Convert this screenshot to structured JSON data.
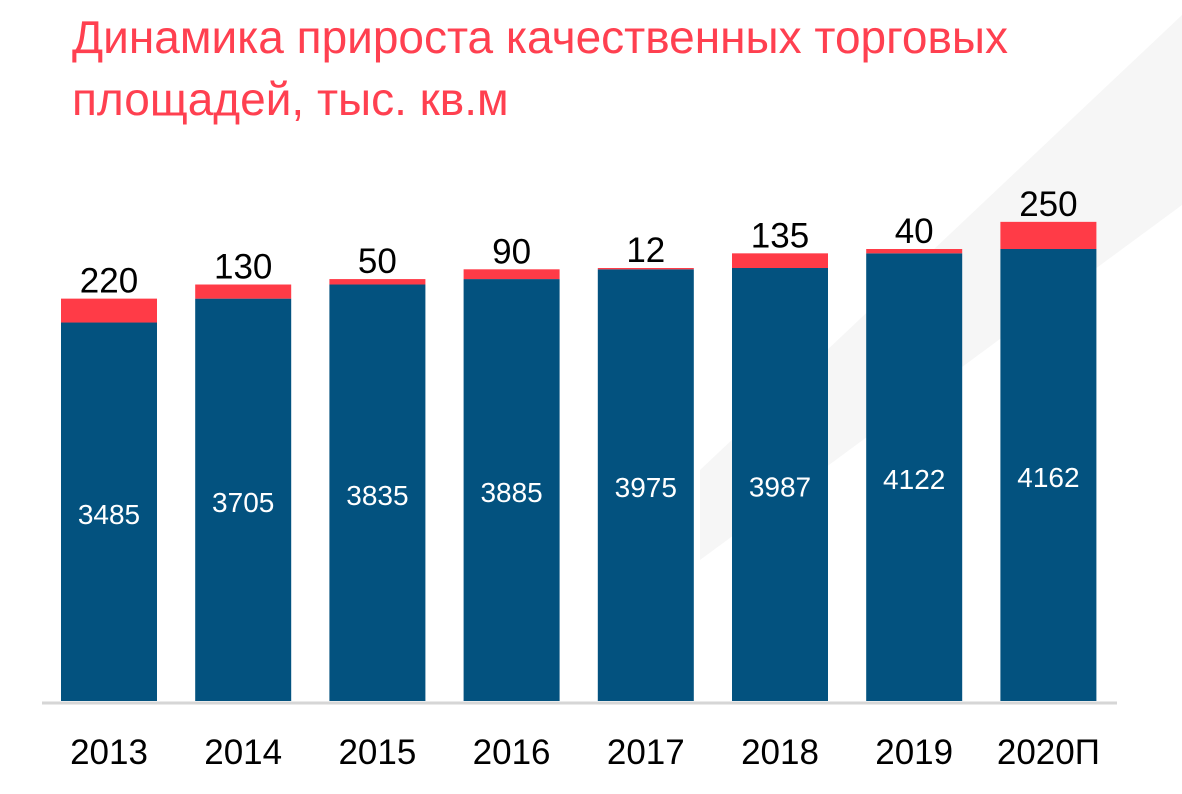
{
  "chart_data": {
    "type": "bar",
    "stacked": true,
    "title": "Динамика прироста качественных торговых площадей, тыс. кв.м",
    "categories": [
      "2013",
      "2014",
      "2015",
      "2016",
      "2017",
      "2018",
      "2019",
      "2020П"
    ],
    "series": [
      {
        "values": [
          3485,
          3705,
          3835,
          3885,
          3975,
          3987,
          4122,
          4162
        ],
        "color": "#03527f",
        "label_color": "#ffffff"
      },
      {
        "values": [
          220,
          130,
          50,
          90,
          12,
          135,
          40,
          250
        ],
        "color": "#ff3b47",
        "label_color": "#000000"
      }
    ],
    "ylim": [
      0,
      4600
    ],
    "grid": false,
    "y_axis_visible": false,
    "legend": "none"
  }
}
